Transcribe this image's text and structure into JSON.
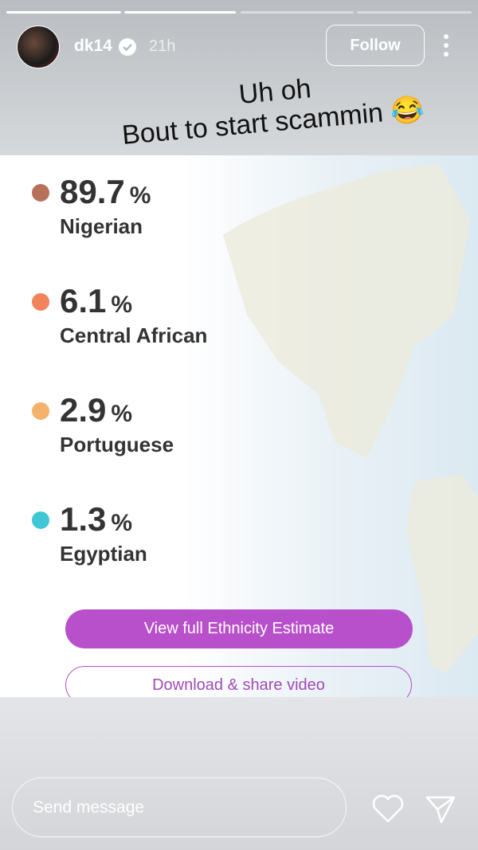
{
  "header": {
    "username": "dk14",
    "time": "21h",
    "follow": "Follow"
  },
  "caption": {
    "line1": "Uh oh",
    "line2": "Bout to start scammin 😂"
  },
  "results": [
    {
      "value": "89.7",
      "unit": "%",
      "label": "Nigerian",
      "color": "#b9705a"
    },
    {
      "value": "6.1",
      "unit": "%",
      "label": "Central African",
      "color": "#f2845c"
    },
    {
      "value": "2.9",
      "unit": "%",
      "label": "Portuguese",
      "color": "#f4b26a"
    },
    {
      "value": "1.3",
      "unit": "%",
      "label": "Egyptian",
      "color": "#3fc7d6"
    }
  ],
  "buttons": {
    "primary": "View full Ethnicity Estimate",
    "secondary": "Download & share video"
  },
  "footer": {
    "placeholder": "Send message"
  }
}
